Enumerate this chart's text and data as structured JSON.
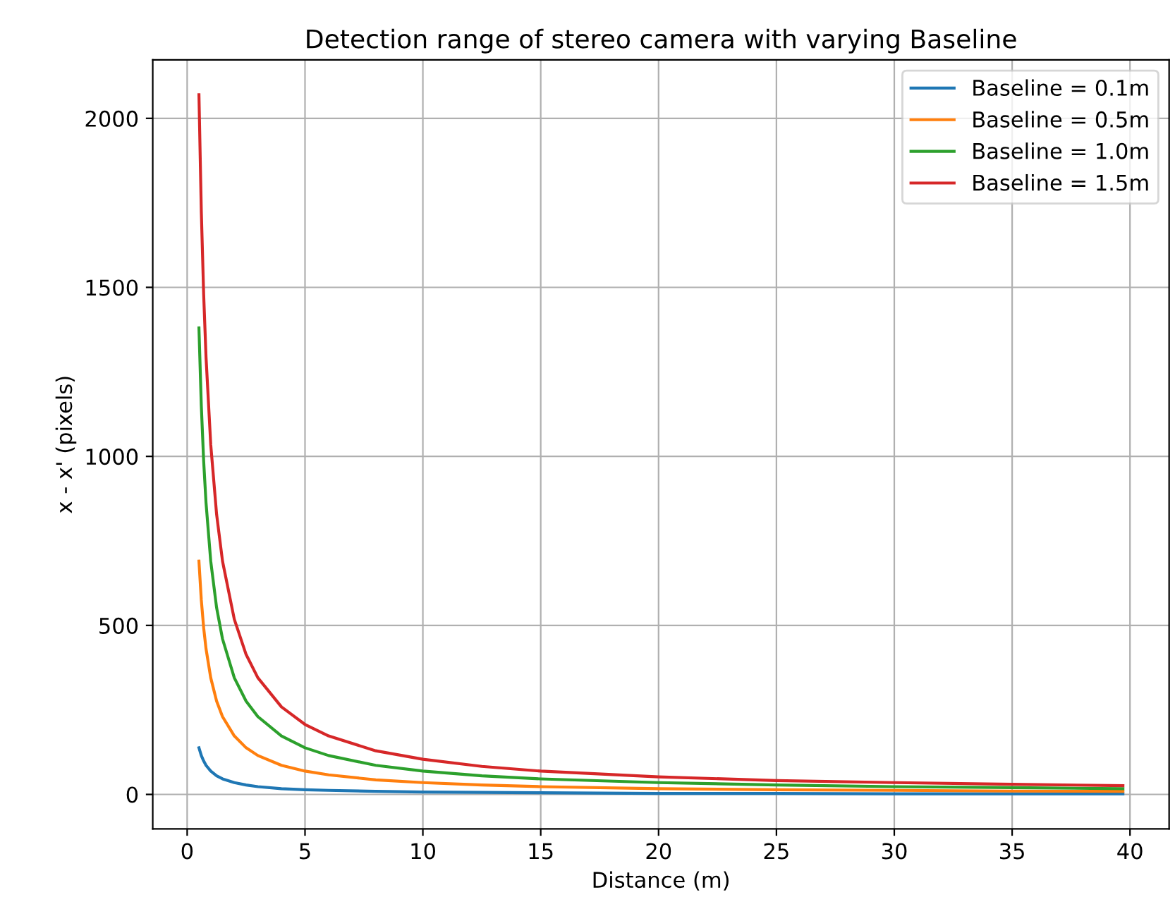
{
  "chart_data": {
    "type": "line",
    "title": "Detection range of stereo camera with varying Baseline",
    "xlabel": "Distance (m)",
    "ylabel": "x - x' (pixels)",
    "x": [
      0.5,
      0.6,
      0.7,
      0.8,
      1,
      1.25,
      1.5,
      2,
      2.5,
      3,
      4,
      5,
      6,
      8,
      10,
      12.5,
      15,
      20,
      25,
      30,
      35,
      39.7
    ],
    "series": [
      {
        "name": "Baseline = 0.1m",
        "color": "#1f77b4",
        "values": [
          138,
          115,
          99,
          86,
          69,
          55,
          46,
          35,
          28,
          23,
          17,
          14,
          12,
          9,
          7,
          6,
          5,
          3,
          3,
          2,
          2,
          2
        ]
      },
      {
        "name": "Baseline = 0.5m",
        "color": "#ff7f0e",
        "values": [
          690,
          575,
          493,
          431,
          345,
          276,
          230,
          173,
          138,
          115,
          86,
          69,
          58,
          43,
          35,
          28,
          23,
          17,
          14,
          12,
          10,
          9
        ]
      },
      {
        "name": "Baseline = 1.0m",
        "color": "#2ca02c",
        "values": [
          1380,
          1150,
          986,
          863,
          690,
          552,
          460,
          345,
          276,
          230,
          173,
          138,
          115,
          86,
          69,
          55,
          46,
          35,
          28,
          23,
          20,
          17
        ]
      },
      {
        "name": "Baseline = 1.5m",
        "color": "#d62728",
        "values": [
          2070,
          1725,
          1479,
          1294,
          1035,
          828,
          690,
          518,
          414,
          345,
          259,
          207,
          173,
          129,
          104,
          83,
          69,
          52,
          41,
          35,
          30,
          26
        ]
      }
    ],
    "xlim": [
      -1.46,
      41.66
    ],
    "ylim": [
      -102,
      2173
    ],
    "xticks": [
      0,
      5,
      10,
      15,
      20,
      25,
      30,
      35,
      40
    ],
    "yticks": [
      0,
      500,
      1000,
      1500,
      2000
    ],
    "grid": true,
    "legend": "top right",
    "marker": "none",
    "line_style": "solid"
  }
}
